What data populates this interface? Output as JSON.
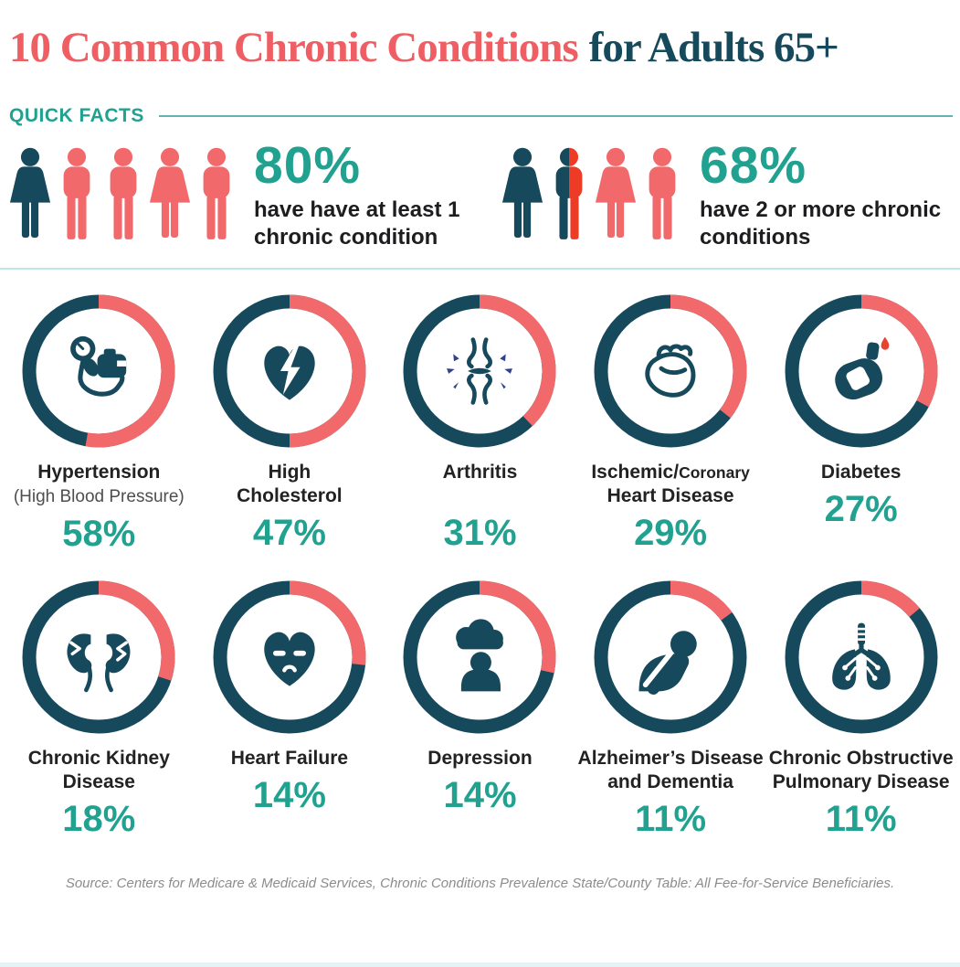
{
  "title": {
    "main": "10 Common Chronic Conditions",
    "suffix": "for Adults 65+"
  },
  "section_label": "QUICK FACTS",
  "quick_facts": [
    {
      "percent": "80%",
      "line1": "have have at least 1",
      "line2": "chronic condition",
      "value": 80,
      "persons": [
        "woman-dark",
        "man-coral",
        "man-coral",
        "woman-coral",
        "man-coral"
      ]
    },
    {
      "percent": "68%",
      "line1": "have 2 or more chronic",
      "line2": "conditions",
      "value": 68,
      "persons": [
        "woman-dark",
        "man-split",
        "woman-coral",
        "man-coral"
      ]
    }
  ],
  "chart_data": {
    "type": "pie",
    "subtype": "donut-grid",
    "title": "10 Common Chronic Conditions for Adults 65+",
    "unit": "% of adults 65+",
    "legend_position": "none",
    "quick_fact_values": [
      {
        "label": "have have at least 1 chronic condition",
        "value": 80
      },
      {
        "label": "have 2 or more chronic conditions",
        "value": 68
      }
    ],
    "items": [
      {
        "condition": "Hypertension (High Blood Pressure)",
        "line1": "Hypertension",
        "subtitle": "(High Blood Pressure)",
        "value": 58,
        "percent": "58%",
        "icon": "blood-pressure-monitor",
        "ring_coral_deg": 190
      },
      {
        "condition": "High Cholesterol",
        "line1": "High",
        "line2": "Cholesterol",
        "value": 47,
        "percent": "47%",
        "icon": "broken-heart-lightning",
        "ring_coral_deg": 180
      },
      {
        "condition": "Arthritis",
        "line1": "Arthritis",
        "value": 31,
        "percent": "31%",
        "icon": "bone-joint",
        "ring_coral_deg": 136
      },
      {
        "condition": "Ischemic/Coronary Heart Disease",
        "line1": "Ischemic/",
        "line1_small": "Coronary",
        "line2": "Heart Disease",
        "value": 29,
        "percent": "29%",
        "icon": "anatomical-heart",
        "ring_coral_deg": 128
      },
      {
        "condition": "Diabetes",
        "line1": "Diabetes",
        "value": 27,
        "percent": "27%",
        "icon": "glucose-meter",
        "ring_coral_deg": 118
      },
      {
        "condition": "Chronic Kidney Disease",
        "line1": "Chronic Kidney",
        "line2": "Disease",
        "value": 18,
        "percent": "18%",
        "icon": "kidneys",
        "ring_coral_deg": 108
      },
      {
        "condition": "Heart Failure",
        "line1": "Heart Failure",
        "value": 14,
        "percent": "14%",
        "icon": "sad-heart",
        "ring_coral_deg": 96
      },
      {
        "condition": "Depression",
        "line1": "Depression",
        "value": 14,
        "percent": "14%",
        "icon": "person-rain-cloud",
        "ring_coral_deg": 102
      },
      {
        "condition": "Alzheimer’s Disease and Dementia",
        "line1": "Alzheimer’s Disease",
        "line2": "and Dementia",
        "value": 11,
        "percent": "11%",
        "icon": "person-memory-loss",
        "ring_coral_deg": 54
      },
      {
        "condition": "Chronic Obstructive Pulmonary Disease",
        "line1": "Chronic Obstructive",
        "line2": "Pulmonary Disease",
        "value": 11,
        "percent": "11%",
        "icon": "lungs",
        "ring_coral_deg": 50
      }
    ]
  },
  "source": "Source: Centers for Medicare & Medicaid Services, Chronic Conditions Prevalence State/County Table: All Fee-for-Service Beneficiaries.",
  "colors": {
    "title_red": "#ef5e63",
    "dark_teal": "#17495c",
    "coral": "#f2696c",
    "accent_teal": "#21a18f",
    "bright_red": "#ee3b25",
    "spark_navy": "#31418c",
    "blood_drop_red": "#e8432e",
    "divider_light": "#c2e6e8",
    "rule_teal": "#62b4b0",
    "text_dark": "#1d1d1f",
    "subtitle_gray": "#4e4e50",
    "source_gray": "#8c8c8c",
    "bottom_strip": "#e4f4f6"
  }
}
